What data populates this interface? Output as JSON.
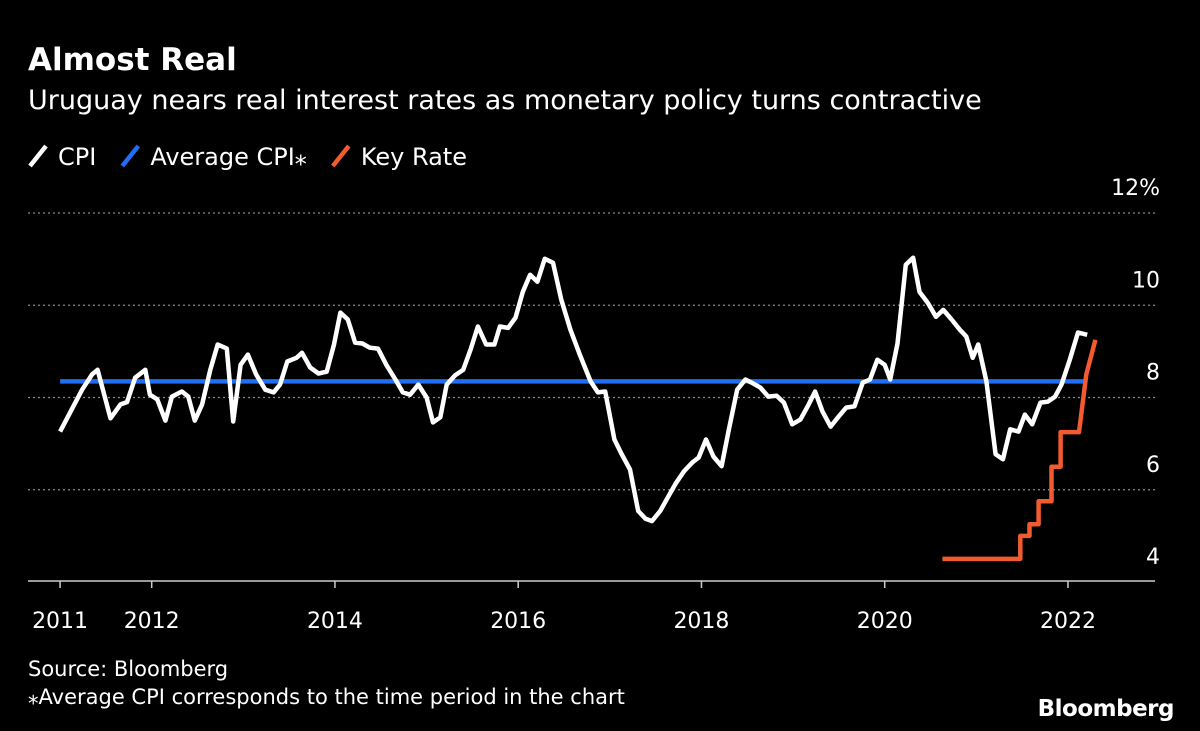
{
  "chart_data": {
    "type": "line",
    "title": "Almost Real",
    "subtitle": "Uruguay nears real interest rates as monetary policy turns contractive",
    "source": "Source: Bloomberg",
    "note": "⁎Average CPI corresponds to the time period in the chart",
    "logo": "Bloomberg",
    "xlim": [
      2010.65,
      2022.95
    ],
    "xticks": [
      2011,
      2012,
      2014,
      2016,
      2018,
      2020,
      2022
    ],
    "ylim": [
      4,
      12
    ],
    "yticks": [
      4,
      6,
      8,
      10,
      {
        "value": 12,
        "label": "12%"
      }
    ],
    "grid": true,
    "series": [
      {
        "name": "CPI",
        "color": "#ffffff",
        "x": [
          2011.0,
          2011.24,
          2011.35,
          2011.41,
          2011.55,
          2011.66,
          2011.73,
          2011.82,
          2011.93,
          2011.98,
          2012.06,
          2012.15,
          2012.22,
          2012.33,
          2012.4,
          2012.47,
          2012.55,
          2012.64,
          2012.72,
          2012.82,
          2012.89,
          2012.97,
          2013.05,
          2013.14,
          2013.24,
          2013.33,
          2013.4,
          2013.48,
          2013.58,
          2013.64,
          2013.73,
          2013.82,
          2013.91,
          2013.99,
          2014.06,
          2014.14,
          2014.22,
          2014.3,
          2014.38,
          2014.47,
          2014.56,
          2014.66,
          2014.74,
          2014.82,
          2014.91,
          2015.0,
          2015.07,
          2015.15,
          2015.22,
          2015.31,
          2015.4,
          2015.48,
          2015.56,
          2015.65,
          2015.74,
          2015.8,
          2015.89,
          2015.97,
          2016.05,
          2016.13,
          2016.21,
          2016.29,
          2016.38,
          2016.47,
          2016.57,
          2016.68,
          2016.79,
          2016.87,
          2016.95,
          2017.05,
          2017.13,
          2017.22,
          2017.31,
          2017.39,
          2017.46,
          2017.55,
          2017.64,
          2017.72,
          2017.81,
          2017.9,
          2017.97,
          2018.05,
          2018.13,
          2018.22,
          2018.3,
          2018.39,
          2018.48,
          2018.55,
          2018.64,
          2018.73,
          2018.82,
          2018.9,
          2018.99,
          2019.08,
          2019.17,
          2019.24,
          2019.32,
          2019.41,
          2019.49,
          2019.58,
          2019.67,
          2019.76,
          2019.84,
          2019.92,
          2020.0,
          2020.06,
          2020.14,
          2020.23,
          2020.31,
          2020.38,
          2020.47,
          2020.56,
          2020.64,
          2020.73,
          2020.82,
          2020.89,
          2020.96,
          2021.02,
          2021.11,
          2021.21,
          2021.29,
          2021.37,
          2021.46,
          2021.53,
          2021.61,
          2021.7,
          2021.78,
          2021.86,
          2021.93,
          2022.02,
          2022.11,
          2022.21
        ],
        "values": [
          7.26,
          8.17,
          8.5,
          8.6,
          7.55,
          7.85,
          7.9,
          8.43,
          8.6,
          8.06,
          7.96,
          7.5,
          8.02,
          8.13,
          8.02,
          7.5,
          7.85,
          8.6,
          9.15,
          9.06,
          7.48,
          8.71,
          8.93,
          8.5,
          8.17,
          8.11,
          8.28,
          8.78,
          8.86,
          8.97,
          8.65,
          8.52,
          8.56,
          9.15,
          9.84,
          9.69,
          9.19,
          9.17,
          9.08,
          9.06,
          8.71,
          8.39,
          8.11,
          8.06,
          8.28,
          8.0,
          7.46,
          7.57,
          8.28,
          8.48,
          8.6,
          9.04,
          9.54,
          9.15,
          9.15,
          9.54,
          9.51,
          9.73,
          10.29,
          10.66,
          10.51,
          11.01,
          10.92,
          10.12,
          9.47,
          8.89,
          8.35,
          8.11,
          8.13,
          7.09,
          6.77,
          6.44,
          5.54,
          5.37,
          5.32,
          5.54,
          5.86,
          6.14,
          6.4,
          6.59,
          6.7,
          7.09,
          6.72,
          6.51,
          7.31,
          8.17,
          8.39,
          8.32,
          8.22,
          8.02,
          8.04,
          7.89,
          7.42,
          7.52,
          7.85,
          8.13,
          7.7,
          7.37,
          7.57,
          7.78,
          7.81,
          8.32,
          8.39,
          8.82,
          8.71,
          8.39,
          9.17,
          10.88,
          11.03,
          10.29,
          10.05,
          9.75,
          9.9,
          9.69,
          9.47,
          9.32,
          8.86,
          9.15,
          8.35,
          6.77,
          6.66,
          7.31,
          7.26,
          7.63,
          7.42,
          7.89,
          7.91,
          8.02,
          8.28,
          8.82,
          9.41,
          9.36
        ]
      },
      {
        "name": "Average CPI⁎",
        "color": "#1f6ef5",
        "x": [
          2011.0,
          2022.2
        ],
        "values": [
          8.35,
          8.35
        ]
      },
      {
        "name": "Key Rate",
        "color": "#f25a30",
        "x": [
          2020.63,
          2021.48,
          2021.48,
          2021.58,
          2021.58,
          2021.68,
          2021.68,
          2021.82,
          2021.82,
          2021.92,
          2021.92,
          2022.12,
          2022.2,
          2022.3
        ],
        "values": [
          4.5,
          4.5,
          5.0,
          5.0,
          5.25,
          5.25,
          5.75,
          5.75,
          6.5,
          6.5,
          7.25,
          7.25,
          8.5,
          9.25
        ]
      }
    ]
  }
}
